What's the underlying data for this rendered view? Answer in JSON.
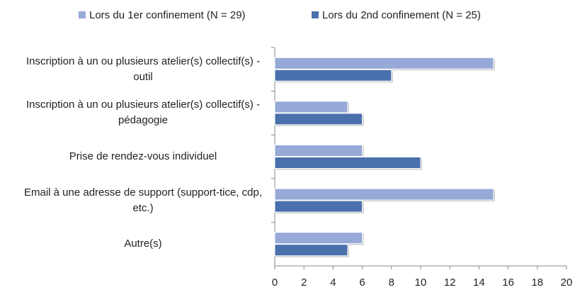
{
  "chart_data": {
    "type": "bar",
    "orientation": "horizontal",
    "categories": [
      "Inscription à un ou plusieurs atelier(s) collectif(s) - outil",
      "Inscription à un ou plusieurs atelier(s) collectif(s) - pédagogie",
      "Prise de rendez-vous individuel",
      "Email à une adresse de support (support-tice, cdp, etc.)",
      "Autre(s)"
    ],
    "series": [
      {
        "name": "Lors du 1er confinement (N = 29)",
        "color": "#96a9d7",
        "values": [
          15,
          5,
          6,
          15,
          6
        ]
      },
      {
        "name": "Lors du 2nd confinement (N = 25)",
        "color": "#4a70ad",
        "values": [
          8,
          6,
          10,
          6,
          5
        ]
      }
    ],
    "xlim": [
      0,
      20
    ],
    "xticks": [
      0,
      2,
      4,
      6,
      8,
      10,
      12,
      14,
      16,
      18,
      20
    ],
    "legend": "top"
  }
}
